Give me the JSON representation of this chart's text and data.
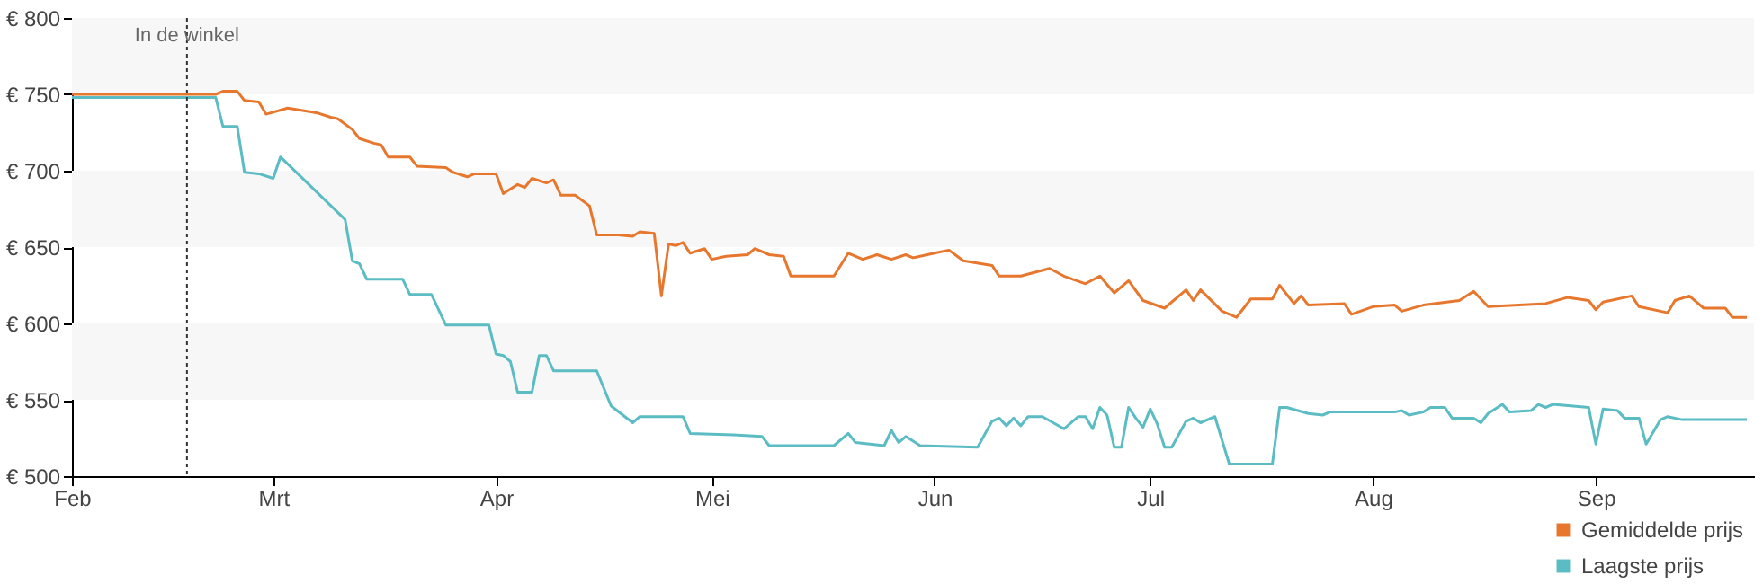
{
  "chart_data": {
    "type": "line",
    "legend": "bottom right",
    "marker": "none",
    "line_style": "solid",
    "xlim": [
      "--02-01",
      "--09-23"
    ],
    "xticks": [
      {
        "value": "--02-01",
        "label": "Feb"
      },
      {
        "value": "--03-01",
        "label": "Mrt"
      },
      {
        "value": "--04-01",
        "label": "Apr"
      },
      {
        "value": "--05-01",
        "label": "Mei"
      },
      {
        "value": "--06-01",
        "label": "Jun"
      },
      {
        "value": "--07-01",
        "label": "Jul"
      },
      {
        "value": "--08-01",
        "label": "Aug"
      },
      {
        "value": "--09-01",
        "label": "Sep"
      }
    ],
    "ylim": [
      500,
      800
    ],
    "yticks": [
      {
        "value": 500,
        "label": "€ 500"
      },
      {
        "value": 550,
        "label": "€ 550"
      },
      {
        "value": 600,
        "label": "€ 600"
      },
      {
        "value": 650,
        "label": "€ 650"
      },
      {
        "value": 700,
        "label": "€ 700"
      },
      {
        "value": 750,
        "label": "€ 750"
      },
      {
        "value": 800,
        "label": "€ 800"
      }
    ],
    "ref_lines": [
      {
        "axis": "x",
        "value": "--02-17",
        "label": "In de winkel",
        "line_style": "dotted",
        "color": "#333333"
      }
    ],
    "series": [
      {
        "name": "Gemiddelde prijs",
        "color": "#e8772e",
        "x": [
          "--02-01",
          "--02-21",
          "--02-22",
          "--02-24",
          "--02-25",
          "--02-27",
          "--02-28",
          "--03-03",
          "--03-07",
          "--03-09",
          "--03-10",
          "--03-12",
          "--03-13",
          "--03-15",
          "--03-16",
          "--03-17",
          "--03-20",
          "--03-21",
          "--03-25",
          "--03-26",
          "--03-28",
          "--03-29",
          "--04-01",
          "--04-02",
          "--04-04",
          "--04-05",
          "--04-06",
          "--04-08",
          "--04-09",
          "--04-10",
          "--04-12",
          "--04-14",
          "--04-15",
          "--04-18",
          "--04-20",
          "--04-21",
          "--04-23",
          "--04-24",
          "--04-25",
          "--04-26",
          "--04-27",
          "--04-28",
          "--04-30",
          "--05-01",
          "--05-03",
          "--05-06",
          "--05-07",
          "--05-09",
          "--05-11",
          "--05-12",
          "--05-18",
          "--05-20",
          "--05-22",
          "--05-24",
          "--05-26",
          "--05-28",
          "--05-29",
          "--06-01",
          "--06-03",
          "--06-05",
          "--06-09",
          "--06-10",
          "--06-13",
          "--06-17",
          "--06-19",
          "--06-22",
          "--06-24",
          "--06-26",
          "--06-28",
          "--06-30",
          "--07-03",
          "--07-06",
          "--07-07",
          "--07-08",
          "--07-11",
          "--07-13",
          "--07-15",
          "--07-18",
          "--07-19",
          "--07-21",
          "--07-22",
          "--07-23",
          "--07-28",
          "--07-29",
          "--08-01",
          "--08-04",
          "--08-05",
          "--08-08",
          "--08-13",
          "--08-15",
          "--08-17",
          "--08-25",
          "--08-28",
          "--08-31",
          "--09-01",
          "--09-02",
          "--09-06",
          "--09-07",
          "--09-11",
          "--09-12",
          "--09-14",
          "--09-16",
          "--09-19",
          "--09-20",
          "--09-22"
        ],
        "values": [
          750,
          750,
          752,
          752,
          746,
          745,
          737,
          741,
          738,
          735,
          734,
          727,
          721,
          718,
          717,
          709,
          709,
          703,
          702,
          699,
          696,
          698,
          698,
          685,
          691,
          689,
          695,
          692,
          694,
          684,
          684,
          677,
          658,
          658,
          657,
          660,
          659,
          618,
          652,
          651,
          653,
          646,
          649,
          642,
          644,
          645,
          649,
          645,
          644,
          631,
          631,
          646,
          642,
          645,
          642,
          645,
          643,
          646,
          648,
          641,
          638,
          631,
          631,
          636,
          631,
          626,
          631,
          620,
          628,
          615,
          610,
          622,
          615,
          622,
          608,
          604,
          616,
          616,
          625,
          613,
          618,
          612,
          613,
          606,
          611,
          612,
          608,
          612,
          615,
          621,
          611,
          613,
          617,
          615,
          609,
          614,
          618,
          611,
          607,
          615,
          618,
          610,
          610,
          604,
          604
        ]
      },
      {
        "name": "Laagste prijs",
        "color": "#5bbcc4",
        "x": [
          "--02-01",
          "--02-21",
          "--02-22",
          "--02-24",
          "--02-25",
          "--02-27",
          "--03-01",
          "--03-02",
          "--03-11",
          "--03-12",
          "--03-13",
          "--03-14",
          "--03-19",
          "--03-20",
          "--03-23",
          "--03-25",
          "--03-31",
          "--04-01",
          "--04-02",
          "--04-03",
          "--04-04",
          "--04-06",
          "--04-07",
          "--04-08",
          "--04-09",
          "--04-15",
          "--04-17",
          "--04-20",
          "--04-21",
          "--04-27",
          "--04-28",
          "--05-04",
          "--05-08",
          "--05-09",
          "--05-18",
          "--05-20",
          "--05-21",
          "--05-25",
          "--05-26",
          "--05-27",
          "--05-28",
          "--05-30",
          "--06-07",
          "--06-09",
          "--06-10",
          "--06-11",
          "--06-12",
          "--06-13",
          "--06-14",
          "--06-16",
          "--06-19",
          "--06-21",
          "--06-22",
          "--06-23",
          "--06-24",
          "--06-25",
          "--06-26",
          "--06-27",
          "--06-28",
          "--06-29",
          "--06-30",
          "--07-01",
          "--07-02",
          "--07-03",
          "--07-04",
          "--07-06",
          "--07-07",
          "--07-08",
          "--07-10",
          "--07-12",
          "--07-18",
          "--07-19",
          "--07-20",
          "--07-23",
          "--07-25",
          "--07-26",
          "--08-04",
          "--08-05",
          "--08-06",
          "--08-08",
          "--08-09",
          "--08-11",
          "--08-12",
          "--08-15",
          "--08-16",
          "--08-17",
          "--08-19",
          "--08-20",
          "--08-23",
          "--08-24",
          "--08-25",
          "--08-26",
          "--08-31",
          "--09-01",
          "--09-02",
          "--09-04",
          "--09-05",
          "--09-07",
          "--09-08",
          "--09-10",
          "--09-11",
          "--09-13",
          "--09-22"
        ],
        "values": [
          748,
          748,
          729,
          729,
          699,
          698,
          695,
          709,
          668,
          641,
          639,
          629,
          629,
          619,
          619,
          599,
          599,
          580,
          579,
          575,
          555,
          555,
          579,
          579,
          569,
          569,
          546,
          535,
          539,
          539,
          528,
          527,
          526,
          520,
          520,
          528,
          522,
          520,
          530,
          522,
          526,
          520,
          519,
          536,
          538,
          533,
          538,
          533,
          539,
          539,
          531,
          539,
          539,
          531,
          545,
          540,
          519,
          519,
          545,
          538,
          532,
          544,
          534,
          519,
          519,
          536,
          538,
          535,
          539,
          508,
          508,
          545,
          545,
          541,
          540,
          542,
          542,
          543,
          540,
          542,
          545,
          545,
          538,
          538,
          535,
          541,
          547,
          542,
          543,
          547,
          545,
          547,
          545,
          521,
          544,
          543,
          538,
          538,
          521,
          537,
          539,
          537,
          537
        ]
      }
    ]
  }
}
